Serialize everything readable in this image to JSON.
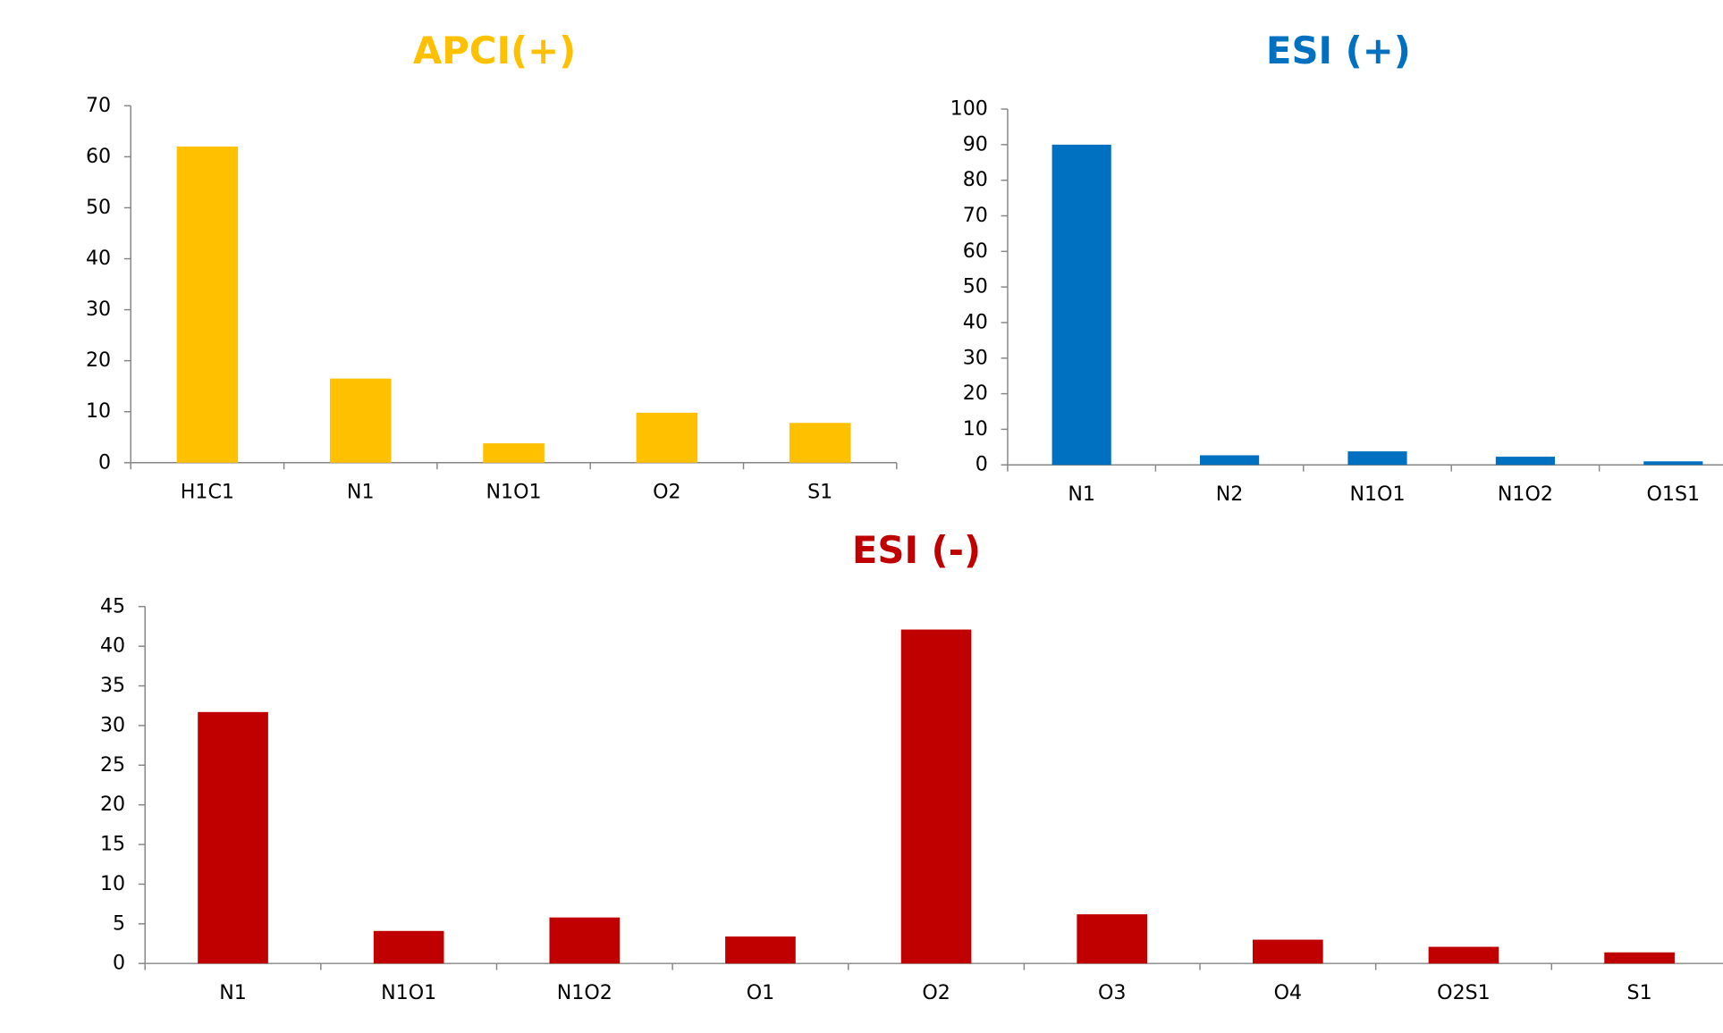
{
  "chart_data": [
    {
      "type": "bar",
      "title": "APCI(+)",
      "color": "#FFC000",
      "categories": [
        "H1C1",
        "N1",
        "N1O1",
        "O2",
        "S1"
      ],
      "values": [
        62,
        16.5,
        3.8,
        9.8,
        7.8
      ],
      "ylim": [
        0,
        70
      ],
      "yticks": [
        0,
        10,
        20,
        30,
        40,
        50,
        60,
        70
      ]
    },
    {
      "type": "bar",
      "title": "ESI (+)",
      "color": "#0070C0",
      "categories": [
        "N1",
        "N2",
        "N1O1",
        "N1O2",
        "O1S1"
      ],
      "values": [
        90,
        2.7,
        3.8,
        2.3,
        1.0
      ],
      "ylim": [
        0,
        100
      ],
      "yticks": [
        0,
        10,
        20,
        30,
        40,
        50,
        60,
        70,
        80,
        90,
        100
      ]
    },
    {
      "type": "bar",
      "title": "ESI (-)",
      "color": "#C00000",
      "categories": [
        "N1",
        "N1O1",
        "N1O2",
        "O1",
        "O2",
        "O3",
        "O4",
        "O2S1",
        "S1"
      ],
      "values": [
        31.7,
        4.1,
        5.8,
        3.4,
        42.1,
        6.2,
        3.0,
        2.1,
        1.4
      ],
      "ylim": [
        0,
        45
      ],
      "yticks": [
        0,
        5,
        10,
        15,
        20,
        25,
        30,
        35,
        40,
        45
      ]
    }
  ]
}
